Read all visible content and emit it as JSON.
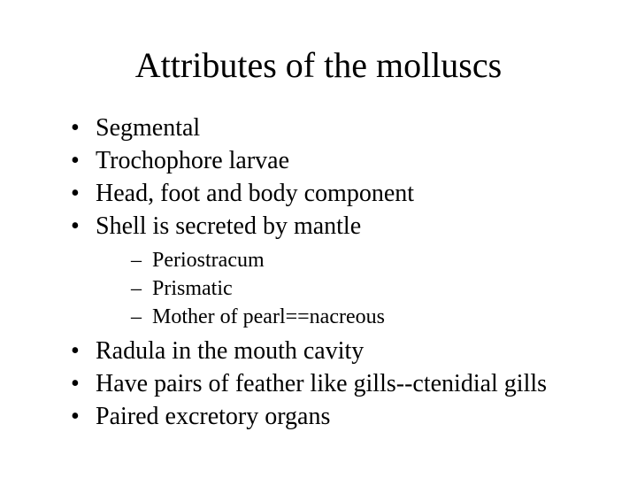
{
  "title": "Attributes of the molluscs",
  "bullets": {
    "b0": "Segmental",
    "b1": "Trochophore larvae",
    "b2": "Head, foot and body component",
    "b3": "Shell is secreted by mantle",
    "sub0": "Periostracum",
    "sub1": "Prismatic",
    "sub2": "Mother of pearl==nacreous",
    "b4": "Radula in the mouth cavity",
    "b5": "Have pairs of feather like gills--ctenidial gills",
    "b6": "Paired excretory organs"
  }
}
